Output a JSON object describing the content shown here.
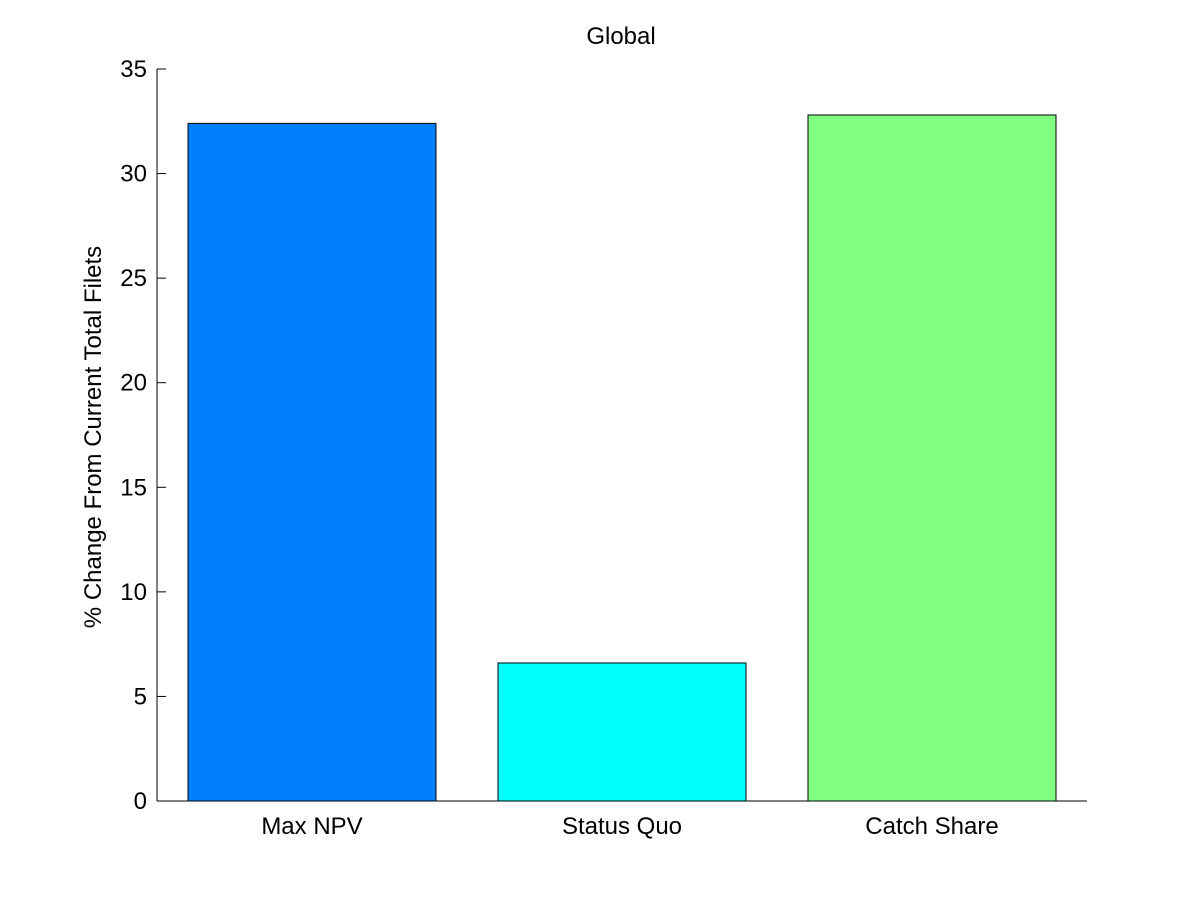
{
  "chart_data": {
    "type": "bar",
    "title": "Global",
    "xlabel": "",
    "ylabel": "% Change From Current Total Filets",
    "categories": [
      "Max NPV",
      "Status Quo",
      "Catch Share"
    ],
    "values": [
      32.4,
      6.6,
      32.8
    ],
    "colors": [
      "#0080ff",
      "#00ffff",
      "#80ff80"
    ],
    "ylim": [
      0,
      35
    ],
    "yticks": [
      0,
      5,
      10,
      15,
      20,
      25,
      30,
      35
    ],
    "grid": false,
    "legend": "none"
  }
}
